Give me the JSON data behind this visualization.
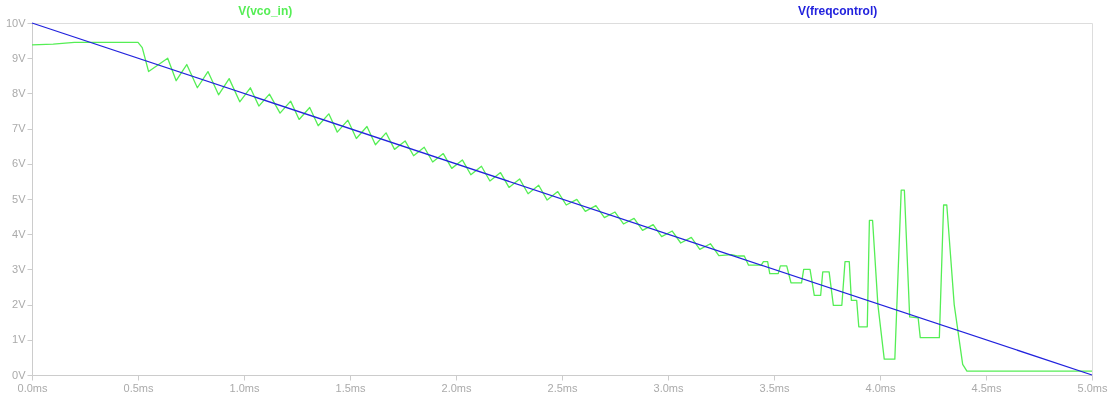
{
  "chart_data": {
    "type": "line",
    "legend": "top",
    "grid": false,
    "marker": "none",
    "line_style": "solid",
    "xlim": [
      0,
      5
    ],
    "ylim": [
      0,
      10
    ],
    "xticks": [
      {
        "value": 0,
        "label": "0.0ms"
      },
      {
        "value": 0.5,
        "label": "0.5ms"
      },
      {
        "value": 1,
        "label": "1.0ms"
      },
      {
        "value": 1.5,
        "label": "1.5ms"
      },
      {
        "value": 2,
        "label": "2.0ms"
      },
      {
        "value": 2.5,
        "label": "2.5ms"
      },
      {
        "value": 3,
        "label": "3.0ms"
      },
      {
        "value": 3.5,
        "label": "3.5ms"
      },
      {
        "value": 4,
        "label": "4.0ms"
      },
      {
        "value": 4.5,
        "label": "4.5ms"
      },
      {
        "value": 5,
        "label": "5.0ms"
      }
    ],
    "yticks": [
      {
        "value": 0,
        "label": "0V"
      },
      {
        "value": 1,
        "label": "1V"
      },
      {
        "value": 2,
        "label": "2V"
      },
      {
        "value": 3,
        "label": "3V"
      },
      {
        "value": 4,
        "label": "4V"
      },
      {
        "value": 5,
        "label": "5V"
      },
      {
        "value": 6,
        "label": "6V"
      },
      {
        "value": 7,
        "label": "7V"
      },
      {
        "value": 8,
        "label": "8V"
      },
      {
        "value": 9,
        "label": "9V"
      },
      {
        "value": 10,
        "label": "10V"
      }
    ],
    "series": [
      {
        "name": "V(vco_in)",
        "color": "#55ee55",
        "x": [
          0,
          0.1,
          0.2,
          0.5,
          0.52,
          0.55,
          0.64,
          0.68,
          0.73,
          0.78,
          0.83,
          0.88,
          0.93,
          0.98,
          1.03,
          1.07,
          1.12,
          1.17,
          1.22,
          1.26,
          1.31,
          1.35,
          1.4,
          1.44,
          1.49,
          1.53,
          1.58,
          1.62,
          1.67,
          1.71,
          1.76,
          1.8,
          1.85,
          1.89,
          1.94,
          1.98,
          2.03,
          2.07,
          2.12,
          2.16,
          2.21,
          2.25,
          2.3,
          2.34,
          2.39,
          2.43,
          2.48,
          2.52,
          2.57,
          2.61,
          2.66,
          2.7,
          2.75,
          2.79,
          2.84,
          2.88,
          2.93,
          2.97,
          3.02,
          3.06,
          3.11,
          3.15,
          3.2,
          3.24,
          3.3,
          3.33,
          3.36,
          3.38,
          3.44,
          3.45,
          3.47,
          3.48,
          3.52,
          3.53,
          3.56,
          3.58,
          3.63,
          3.64,
          3.67,
          3.69,
          3.72,
          3.73,
          3.76,
          3.78,
          3.82,
          3.835,
          3.855,
          3.865,
          3.89,
          3.9,
          3.94,
          3.95,
          3.965,
          3.99,
          4.02,
          4.07,
          4.1,
          4.115,
          4.14,
          4.18,
          4.19,
          4.28,
          4.3,
          4.315,
          4.35,
          4.39,
          4.41,
          5.0
        ],
        "values": [
          9.38,
          9.4,
          9.45,
          9.45,
          9.3,
          8.62,
          9.0,
          8.36,
          8.82,
          8.16,
          8.62,
          7.96,
          8.42,
          7.76,
          8.16,
          7.64,
          7.98,
          7.44,
          7.78,
          7.26,
          7.6,
          7.08,
          7.42,
          6.9,
          7.24,
          6.72,
          7.06,
          6.54,
          6.88,
          6.41,
          6.65,
          6.23,
          6.47,
          6.05,
          6.29,
          5.87,
          6.11,
          5.69,
          5.93,
          5.51,
          5.75,
          5.33,
          5.57,
          5.15,
          5.39,
          4.97,
          5.21,
          4.83,
          4.99,
          4.65,
          4.81,
          4.47,
          4.63,
          4.29,
          4.45,
          4.11,
          4.27,
          3.93,
          4.09,
          3.75,
          3.91,
          3.57,
          3.73,
          3.39,
          3.42,
          3.38,
          3.38,
          3.12,
          3.12,
          3.22,
          3.22,
          2.88,
          2.88,
          3.1,
          3.1,
          2.62,
          2.62,
          3.0,
          3.0,
          2.26,
          2.26,
          2.93,
          2.93,
          1.98,
          1.98,
          3.22,
          3.22,
          2.12,
          2.12,
          1.37,
          1.37,
          4.39,
          4.39,
          2.0,
          0.45,
          0.45,
          5.25,
          5.25,
          1.65,
          1.62,
          1.06,
          1.06,
          4.83,
          4.83,
          2.0,
          0.3,
          0.11,
          0.11
        ]
      },
      {
        "name": "V(freqcontrol)",
        "color": "#2222dd",
        "x": [
          0,
          5
        ],
        "values": [
          10,
          0
        ]
      }
    ]
  }
}
